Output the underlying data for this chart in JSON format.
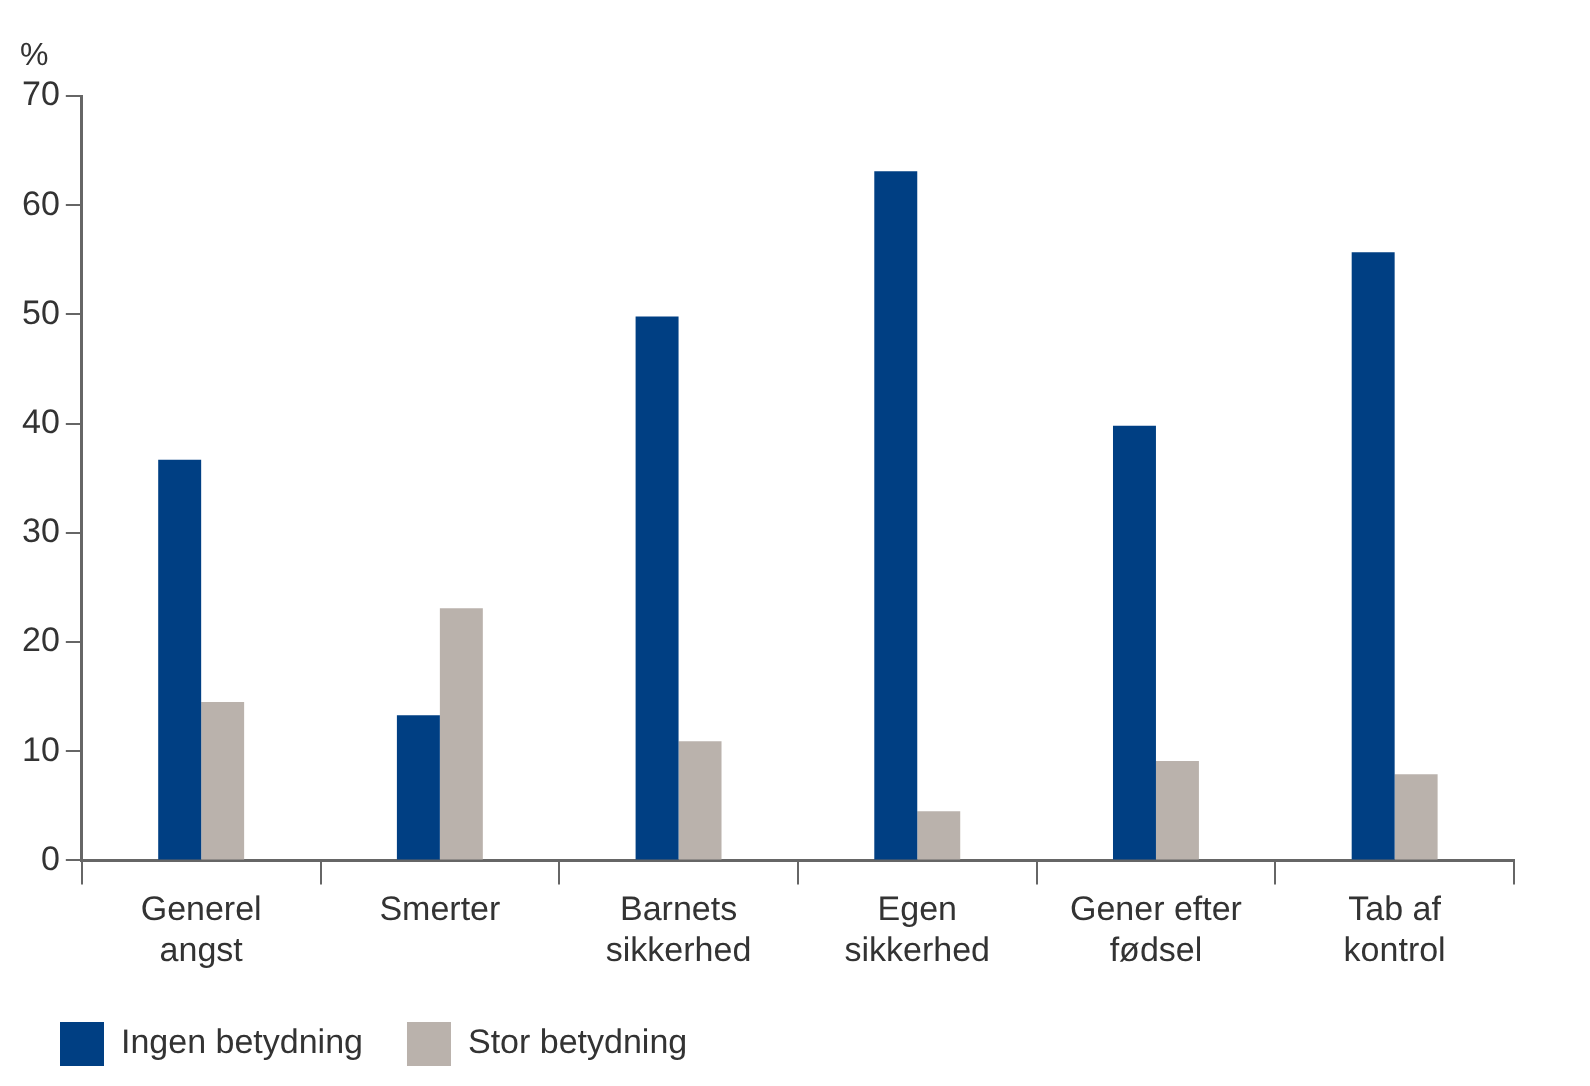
{
  "chart_data": {
    "type": "bar",
    "ylabel": "%",
    "categories": [
      "Generel\nangst",
      "Smerter",
      "Barnets\nsikkerhed",
      "Egen\nsikkerhed",
      "Gener efter\nfødsel",
      "Tab af\nkontrol"
    ],
    "series": [
      {
        "name": "Ingen betydning",
        "color": "#003f83",
        "values": [
          36.7,
          13.3,
          49.8,
          63.1,
          39.8,
          55.7
        ]
      },
      {
        "name": "Stor betydning",
        "color": "#bab2ac",
        "values": [
          14.5,
          23.1,
          10.9,
          4.5,
          9.1,
          7.9
        ]
      }
    ],
    "ylim": [
      0,
      70
    ],
    "yticks": [
      0,
      10,
      20,
      30,
      40,
      50,
      60,
      70
    ],
    "grid": false,
    "legend": "bottom left"
  }
}
